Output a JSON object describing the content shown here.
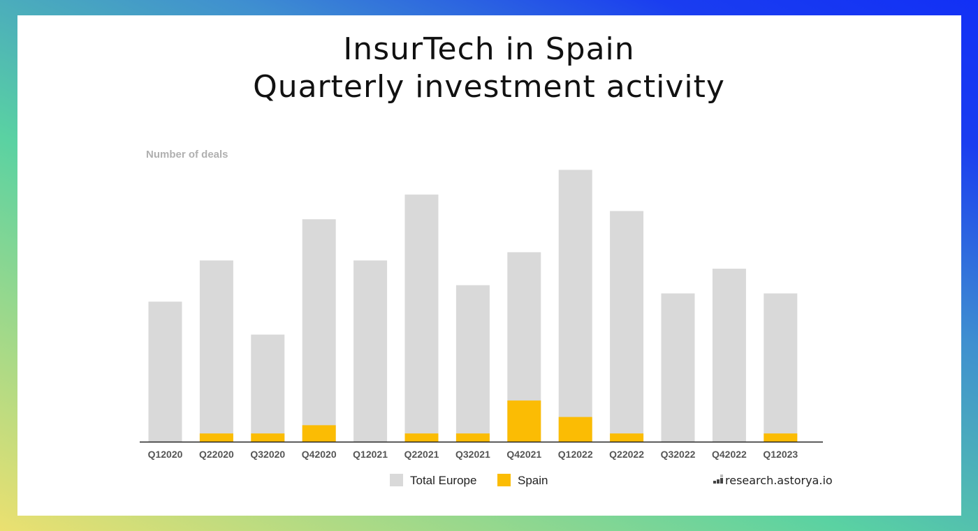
{
  "title_line1": "InsurTech in Spain",
  "title_line2": "Quarterly investment activity",
  "chart_data": {
    "type": "bar",
    "ylabel": "Number of deals",
    "ylim": [
      0,
      36
    ],
    "grid": false,
    "legend_position": "bottom",
    "categories": [
      "Q12020",
      "Q22020",
      "Q32020",
      "Q42020",
      "Q12021",
      "Q22021",
      "Q32021",
      "Q42021",
      "Q12022",
      "Q22022",
      "Q32022",
      "Q42022",
      "Q12023"
    ],
    "series": [
      {
        "name": "Total Europe",
        "color": "#d9d9d9",
        "values": [
          17,
          22,
          13,
          27,
          22,
          30,
          19,
          23,
          33,
          28,
          18,
          21,
          18
        ]
      },
      {
        "name": "Spain",
        "color": "#fbbc04",
        "values": [
          0,
          1,
          1,
          2,
          0,
          1,
          1,
          5,
          3,
          1,
          0,
          0,
          1
        ]
      }
    ]
  },
  "watermark": "research.astorya.io"
}
